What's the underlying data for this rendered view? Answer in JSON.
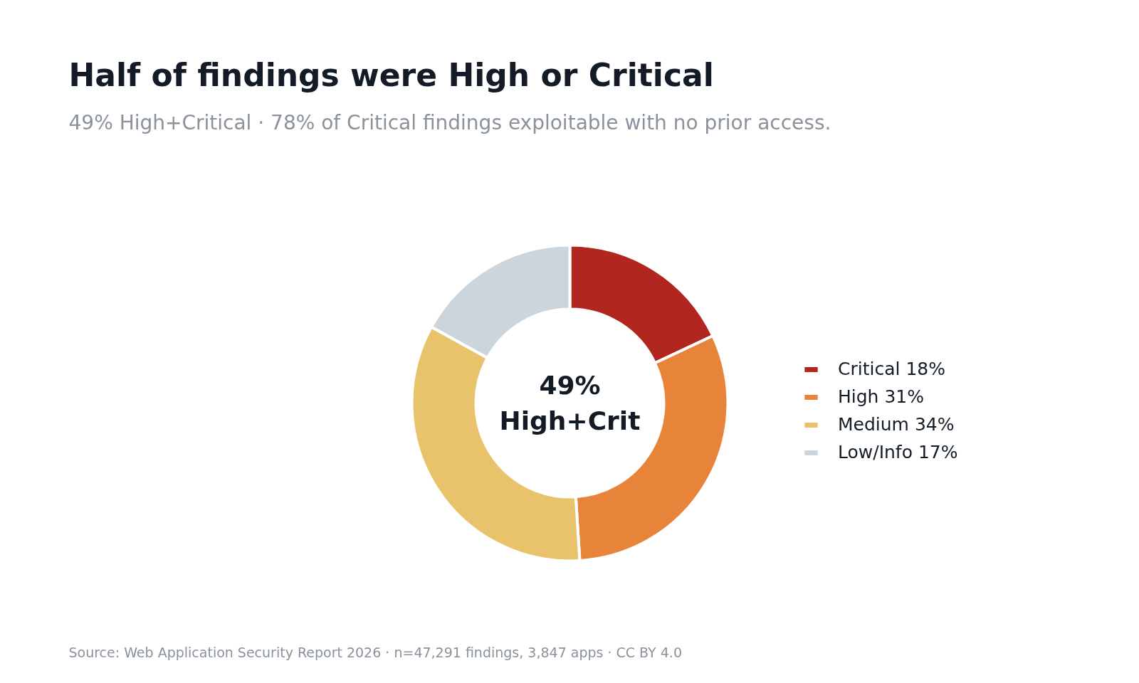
{
  "chart_data": {
    "type": "donut",
    "title": "Half of findings were High or Critical",
    "subtitle": "49% High+Critical · 78% of Critical findings exploitable with no prior access.",
    "categories": [
      "Critical 18%",
      "High 31%",
      "Medium 34%",
      "Low/Info 17%"
    ],
    "values": [
      18,
      31,
      34,
      17
    ],
    "colors": [
      "#b22620",
      "#e8833a",
      "#e8c36b",
      "#cbd5db"
    ],
    "annotations": [
      "49%\nHigh+Crit",
      "Source: Web Application Security Report 2026  ·  n=47,291 findings, 3,847 apps  ·  CC BY 4.0"
    ],
    "legend": "right"
  }
}
